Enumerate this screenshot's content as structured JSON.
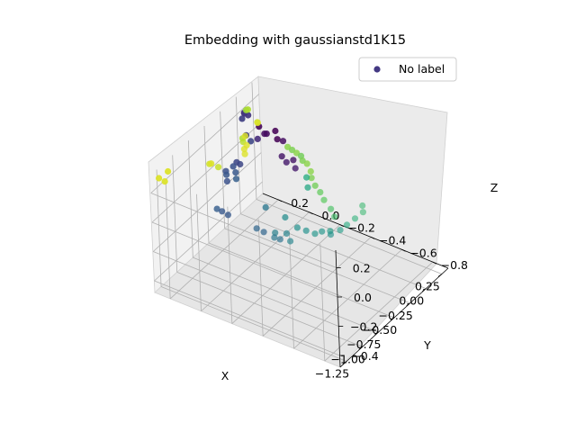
{
  "chart_data": {
    "type": "scatter",
    "projection": "3d",
    "title": "Embedding with gaussianstd1K15",
    "xlabel": "X",
    "ylabel": "Y",
    "zlabel": "Z",
    "xticks": [
      "−1.25",
      "−1.00",
      "−0.75",
      "−0.50",
      "−0.25",
      "0.00",
      "0.25"
    ],
    "yticks": [
      "−0.8",
      "−0.6",
      "−0.4",
      "−0.2",
      "0.0",
      "0.2"
    ],
    "zticks": [
      "−0.4",
      "−0.2",
      "0.0",
      "0.2"
    ],
    "xlim": [
      -1.35,
      0.35
    ],
    "ylim": [
      -0.9,
      0.3
    ],
    "zlim": [
      -0.48,
      0.32
    ],
    "grid": true,
    "legend": {
      "position": "top-right",
      "entries": [
        "No label"
      ]
    },
    "colormap": "viridis",
    "marker_color_legend": "#443983",
    "points": [
      {
        "x": -1.22,
        "y": 0.3,
        "z": 0.25,
        "c": 0.95
      },
      {
        "x": -1.18,
        "y": 0.28,
        "z": 0.22,
        "c": 0.95
      },
      {
        "x": -1.08,
        "y": 0.3,
        "z": 0.24,
        "c": 0.95
      },
      {
        "x": -0.88,
        "y": 0.1,
        "z": 0.3,
        "c": 0.95
      },
      {
        "x": -0.86,
        "y": 0.12,
        "z": 0.28,
        "c": 0.93
      },
      {
        "x": -0.82,
        "y": 0.08,
        "z": 0.26,
        "c": 0.92
      },
      {
        "x": -0.64,
        "y": -0.02,
        "z": 0.32,
        "c": 0.95
      },
      {
        "x": -0.6,
        "y": 0.0,
        "z": 0.33,
        "c": 0.95
      },
      {
        "x": -0.56,
        "y": 0.0,
        "z": 0.34,
        "c": 0.95
      },
      {
        "x": -0.52,
        "y": 0.04,
        "z": 0.33,
        "c": 0.9
      },
      {
        "x": -0.48,
        "y": 0.06,
        "z": 0.33,
        "c": 0.88
      },
      {
        "x": -0.44,
        "y": 0.06,
        "z": 0.33,
        "c": 0.95
      },
      {
        "x": -0.24,
        "y": 0.06,
        "z": 0.34,
        "c": 0.95
      },
      {
        "x": -0.2,
        "y": 0.08,
        "z": 0.32,
        "c": 0.92
      },
      {
        "x": -0.06,
        "y": 0.2,
        "z": 0.3,
        "c": 0.88
      },
      {
        "x": -0.04,
        "y": 0.22,
        "z": 0.28,
        "c": 0.85
      },
      {
        "x": -1.05,
        "y": 0.0,
        "z": 0.1,
        "c": 0.3
      },
      {
        "x": -1.02,
        "y": -0.02,
        "z": 0.08,
        "c": 0.28
      },
      {
        "x": -1.0,
        "y": -0.05,
        "z": 0.06,
        "c": 0.28
      },
      {
        "x": -0.92,
        "y": -0.2,
        "z": 0.0,
        "c": 0.33
      },
      {
        "x": -0.86,
        "y": -0.22,
        "z": -0.04,
        "c": 0.33
      },
      {
        "x": -0.84,
        "y": -0.28,
        "z": -0.06,
        "c": 0.4
      },
      {
        "x": -0.8,
        "y": -0.3,
        "z": -0.08,
        "c": 0.38
      },
      {
        "x": -0.78,
        "y": -0.26,
        "z": -0.06,
        "c": 0.43
      },
      {
        "x": -0.74,
        "y": -0.34,
        "z": -0.1,
        "c": 0.45
      },
      {
        "x": -0.7,
        "y": -0.3,
        "z": -0.08,
        "c": 0.45
      },
      {
        "x": -0.74,
        "y": 0.06,
        "z": 0.14,
        "c": 0.25
      },
      {
        "x": -0.7,
        "y": 0.08,
        "z": 0.16,
        "c": 0.27
      },
      {
        "x": -0.66,
        "y": 0.1,
        "z": 0.16,
        "c": 0.25
      },
      {
        "x": -0.6,
        "y": 0.06,
        "z": 0.1,
        "c": 0.3
      },
      {
        "x": -0.56,
        "y": 0.08,
        "z": 0.12,
        "c": 0.28
      },
      {
        "x": -0.5,
        "y": 0.12,
        "z": 0.12,
        "c": 0.25
      },
      {
        "x": -0.44,
        "y": 0.1,
        "z": 0.12,
        "c": 0.22
      },
      {
        "x": -0.4,
        "y": 0.14,
        "z": 0.1,
        "c": 0.22
      },
      {
        "x": -0.54,
        "y": -0.1,
        "z": -0.05,
        "c": 0.4
      },
      {
        "x": -0.48,
        "y": -0.2,
        "z": -0.1,
        "c": 0.48
      },
      {
        "x": -0.44,
        "y": -0.26,
        "z": -0.16,
        "c": 0.5
      },
      {
        "x": -0.4,
        "y": -0.3,
        "z": -0.18,
        "c": 0.5
      },
      {
        "x": -0.36,
        "y": -0.34,
        "z": -0.2,
        "c": 0.52
      },
      {
        "x": -0.3,
        "y": -0.36,
        "z": -0.2,
        "c": 0.52
      },
      {
        "x": -0.26,
        "y": -0.4,
        "z": -0.22,
        "c": 0.5
      },
      {
        "x": -0.22,
        "y": -0.38,
        "z": -0.22,
        "c": 0.55
      },
      {
        "x": -0.16,
        "y": -0.42,
        "z": -0.22,
        "c": 0.55
      },
      {
        "x": -0.1,
        "y": -0.44,
        "z": -0.2,
        "c": 0.62
      },
      {
        "x": -0.02,
        "y": -0.46,
        "z": -0.18,
        "c": 0.65
      },
      {
        "x": 0.06,
        "y": -0.48,
        "z": -0.16,
        "c": 0.68
      },
      {
        "x": 0.1,
        "y": -0.46,
        "z": -0.14,
        "c": 0.68
      },
      {
        "x": -0.06,
        "y": 0.24,
        "z": 0.22,
        "c": 0.2
      },
      {
        "x": -0.02,
        "y": 0.24,
        "z": 0.24,
        "c": 0.18
      },
      {
        "x": 0.02,
        "y": 0.26,
        "z": 0.22,
        "c": 0.15
      },
      {
        "x": 0.08,
        "y": 0.26,
        "z": 0.18,
        "c": 0.18
      },
      {
        "x": -0.1,
        "y": 0.2,
        "z": 0.14,
        "c": 0.2
      },
      {
        "x": -0.08,
        "y": 0.18,
        "z": 0.1,
        "c": 0.22
      },
      {
        "x": -0.02,
        "y": 0.16,
        "z": 0.1,
        "c": 0.15
      },
      {
        "x": 0.04,
        "y": 0.14,
        "z": 0.12,
        "c": 0.05
      },
      {
        "x": 0.1,
        "y": 0.2,
        "z": 0.12,
        "c": 0.02
      },
      {
        "x": 0.12,
        "y": 0.16,
        "z": 0.08,
        "c": 0.05
      },
      {
        "x": 0.14,
        "y": 0.1,
        "z": 0.06,
        "c": 0.0
      },
      {
        "x": 0.16,
        "y": 0.12,
        "z": 0.1,
        "c": 0.0
      },
      {
        "x": 0.18,
        "y": 0.08,
        "z": 0.04,
        "c": 0.05
      },
      {
        "x": 0.06,
        "y": 0.04,
        "z": 0.0,
        "c": 0.08
      },
      {
        "x": 0.08,
        "y": 0.02,
        "z": -0.04,
        "c": 0.1
      },
      {
        "x": 0.14,
        "y": 0.0,
        "z": -0.04,
        "c": 0.08
      },
      {
        "x": 0.12,
        "y": -0.02,
        "z": -0.08,
        "c": 0.1
      },
      {
        "x": 0.2,
        "y": 0.06,
        "z": 0.0,
        "c": 0.82
      },
      {
        "x": 0.22,
        "y": 0.04,
        "z": -0.02,
        "c": 0.8
      },
      {
        "x": 0.24,
        "y": 0.02,
        "z": -0.04,
        "c": 0.82
      },
      {
        "x": 0.26,
        "y": 0.0,
        "z": -0.06,
        "c": 0.78
      },
      {
        "x": 0.28,
        "y": 0.0,
        "z": -0.1,
        "c": 0.8
      },
      {
        "x": 0.3,
        "y": -0.02,
        "z": -0.12,
        "c": 0.82
      },
      {
        "x": 0.26,
        "y": -0.06,
        "z": -0.14,
        "c": 0.82
      },
      {
        "x": 0.22,
        "y": -0.08,
        "z": -0.16,
        "c": 0.8
      },
      {
        "x": 0.18,
        "y": -0.12,
        "z": -0.18,
        "c": 0.78
      },
      {
        "x": 0.16,
        "y": -0.16,
        "z": -0.2,
        "c": 0.76
      },
      {
        "x": 0.12,
        "y": -0.2,
        "z": -0.22,
        "c": 0.75
      },
      {
        "x": 0.08,
        "y": -0.26,
        "z": -0.24,
        "c": 0.72
      },
      {
        "x": 0.04,
        "y": -0.3,
        "z": -0.26,
        "c": 0.7
      },
      {
        "x": 0.1,
        "y": -0.1,
        "z": -0.1,
        "c": 0.62
      },
      {
        "x": 0.02,
        "y": -0.14,
        "z": -0.12,
        "c": 0.6
      }
    ]
  }
}
